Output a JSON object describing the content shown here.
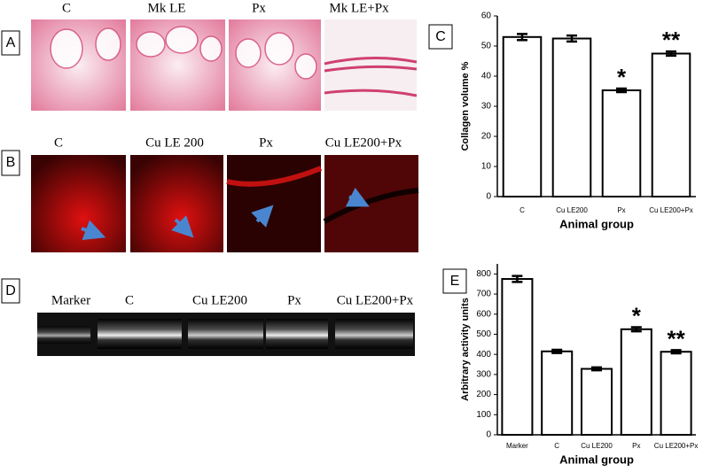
{
  "figure": {
    "panels": [
      {
        "label": "A",
        "captions": [
          "C",
          "Mk LE",
          "Px",
          "Mk LE+Px"
        ]
      },
      {
        "label": "B",
        "captions": [
          "C",
          "Cu LE 200",
          "Px",
          "Cu LE200+Px"
        ]
      },
      {
        "label": "D",
        "captions": [
          "Marker",
          "C",
          "Cu LE200",
          "Px",
          "Cu LE200+Px"
        ]
      }
    ]
  },
  "chart_data": [
    {
      "type": "bar",
      "panel_label": "C",
      "x_label": "Animal group",
      "y_label": "Collagen volume %",
      "categories": [
        "C",
        "Cu LE200",
        "Px",
        "Cu LE200+Px"
      ],
      "values": [
        53,
        52.5,
        35.3,
        47.5
      ],
      "errors": [
        1,
        1,
        0.6,
        0.7
      ],
      "annotations": [
        null,
        null,
        "*",
        "**"
      ],
      "color": "#ffffff",
      "ylim": [
        0,
        60
      ],
      "yticks": [
        0,
        10,
        20,
        30,
        40,
        50,
        60
      ]
    },
    {
      "type": "bar",
      "panel_label": "E",
      "x_label": "Animal group",
      "y_label": "Arbitrary activity units",
      "categories": [
        "Marker",
        "C",
        "Cu LE200",
        "Px",
        "Cu LE200+Px"
      ],
      "values": [
        775,
        415,
        328,
        525,
        413
      ],
      "errors": [
        15,
        8,
        7,
        10,
        8
      ],
      "annotations": [
        null,
        null,
        null,
        "*",
        "**"
      ],
      "color": "#ffffff",
      "ylim": [
        0,
        850
      ],
      "yticks": [
        0,
        100,
        200,
        300,
        400,
        500,
        600,
        700,
        800
      ]
    }
  ]
}
